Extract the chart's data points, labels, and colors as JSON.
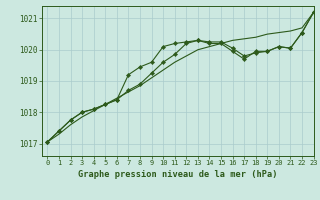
{
  "background_color": "#cce8e0",
  "grid_color": "#aacccc",
  "line_color": "#2d5a1b",
  "title": "Graphe pression niveau de la mer (hPa)",
  "ylabel_ticks": [
    1017,
    1018,
    1019,
    1020,
    1021
  ],
  "xlim": [
    -0.5,
    23
  ],
  "ylim": [
    1016.6,
    1021.4
  ],
  "x": [
    0,
    1,
    2,
    3,
    4,
    5,
    6,
    7,
    8,
    9,
    10,
    11,
    12,
    13,
    14,
    15,
    16,
    17,
    18,
    19,
    20,
    21,
    22,
    23
  ],
  "line1": [
    1017.05,
    1017.3,
    1017.6,
    1017.85,
    1018.05,
    1018.25,
    1018.45,
    1018.65,
    1018.85,
    1019.1,
    1019.35,
    1019.6,
    1019.8,
    1020.0,
    1020.1,
    1020.2,
    1020.3,
    1020.35,
    1020.4,
    1020.5,
    1020.55,
    1020.6,
    1020.7,
    1021.2
  ],
  "line2": [
    1017.05,
    1017.4,
    1017.75,
    1018.0,
    1018.1,
    1018.25,
    1018.4,
    1019.2,
    1019.45,
    1019.6,
    1020.1,
    1020.2,
    1020.25,
    1020.3,
    1020.25,
    1020.25,
    1020.05,
    1019.8,
    1019.9,
    1019.95,
    1020.1,
    1020.05,
    1020.55,
    1021.2
  ],
  "line3": [
    1017.05,
    1017.4,
    1017.75,
    1018.0,
    1018.1,
    1018.25,
    1018.4,
    1018.7,
    1018.9,
    1019.25,
    1019.6,
    1019.85,
    1020.2,
    1020.3,
    1020.2,
    1020.2,
    1019.95,
    1019.7,
    1019.95,
    1019.95,
    1020.1,
    1020.05,
    1020.55,
    1021.2
  ],
  "xtick_labels": [
    "0",
    "1",
    "2",
    "3",
    "4",
    "5",
    "6",
    "7",
    "8",
    "9",
    "10",
    "11",
    "12",
    "13",
    "14",
    "15",
    "16",
    "17",
    "18",
    "19",
    "20",
    "21",
    "22",
    "23"
  ],
  "figsize": [
    3.2,
    2.0
  ],
  "dpi": 100
}
